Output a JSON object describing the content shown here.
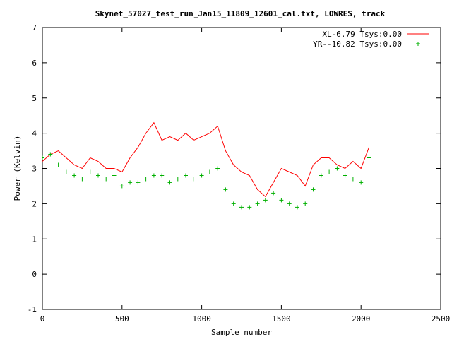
{
  "chart_data": {
    "type": "scatter",
    "title": "Skynet_57027_test_run_Jan15_11809_12601_cal.txt, LOWRES, track",
    "xlabel": "Sample number",
    "ylabel": "Power (Kelvin)",
    "xlim": [
      0,
      2500
    ],
    "ylim": [
      -1,
      7
    ],
    "x_ticks": [
      "0",
      "500",
      "1000",
      "1500",
      "2000",
      "2500"
    ],
    "y_ticks": [
      "-1",
      "0",
      "1",
      "2",
      "3",
      "4",
      "5",
      "6",
      "7"
    ],
    "grid": false,
    "legend_position": "top-right",
    "series": [
      {
        "name": "XL-6.79 Tsys:0.00",
        "style": "line",
        "color": "#ff0000",
        "x": [
          0,
          50,
          100,
          150,
          200,
          250,
          300,
          350,
          400,
          450,
          500,
          550,
          600,
          650,
          700,
          750,
          800,
          850,
          900,
          950,
          1000,
          1050,
          1100,
          1150,
          1200,
          1250,
          1300,
          1350,
          1400,
          1450,
          1500,
          1550,
          1600,
          1650,
          1700,
          1750,
          1800,
          1850,
          1900,
          1950,
          2000,
          2050
        ],
        "y": [
          3.2,
          3.4,
          3.5,
          3.3,
          3.1,
          3.0,
          3.3,
          3.2,
          3.0,
          3.0,
          2.9,
          3.3,
          3.6,
          4.0,
          4.3,
          3.8,
          3.9,
          3.8,
          4.0,
          3.8,
          3.9,
          4.0,
          4.2,
          3.5,
          3.1,
          2.9,
          2.8,
          2.4,
          2.2,
          2.6,
          3.0,
          2.9,
          2.8,
          2.5,
          3.1,
          3.3,
          3.3,
          3.1,
          3.0,
          3.2,
          3.0,
          3.6
        ]
      },
      {
        "name": "YR--10.82 Tsys:0.00",
        "style": "points",
        "marker": "+",
        "color": "#00b000",
        "x": [
          0,
          50,
          100,
          150,
          200,
          250,
          300,
          350,
          400,
          450,
          500,
          550,
          600,
          650,
          700,
          750,
          800,
          850,
          900,
          950,
          1000,
          1050,
          1100,
          1150,
          1200,
          1250,
          1300,
          1350,
          1400,
          1450,
          1500,
          1550,
          1600,
          1650,
          1700,
          1750,
          1800,
          1850,
          1900,
          1950,
          2000,
          2050
        ],
        "y": [
          3.3,
          3.4,
          3.1,
          2.9,
          2.8,
          2.7,
          2.9,
          2.8,
          2.7,
          2.8,
          2.5,
          2.6,
          2.6,
          2.7,
          2.8,
          2.8,
          2.6,
          2.7,
          2.8,
          2.7,
          2.8,
          2.9,
          3.0,
          2.4,
          2.0,
          1.9,
          1.9,
          2.0,
          2.1,
          2.3,
          2.1,
          2.0,
          1.9,
          2.0,
          2.4,
          2.8,
          2.9,
          3.0,
          2.8,
          2.7,
          2.6,
          3.3
        ]
      }
    ]
  }
}
